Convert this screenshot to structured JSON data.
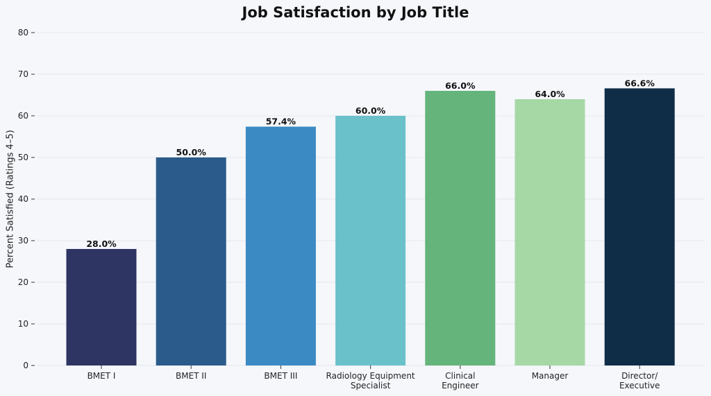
{
  "chart_data": {
    "type": "bar",
    "title": "Job Satisfaction by Job Title",
    "xlabel": "",
    "ylabel": "Percent Satisfied (Ratings 4–5)",
    "ylim": [
      0,
      80
    ],
    "yticks": [
      0,
      10,
      20,
      30,
      40,
      50,
      60,
      70,
      80
    ],
    "grid": true,
    "categories": [
      "BMET I",
      "BMET II",
      "BMET III",
      "Radiology Equipment\nSpecialist",
      "Clinical\nEngineer",
      "Manager",
      "Director/\nExecutive"
    ],
    "values": [
      28.0,
      50.0,
      57.4,
      60.0,
      66.0,
      64.0,
      66.6
    ],
    "data_labels": [
      "28.0%",
      "50.0%",
      "57.4%",
      "60.0%",
      "66.0%",
      "64.0%",
      "66.6%"
    ],
    "colors": [
      "#2e3563",
      "#2a5b8a",
      "#3b8ac4",
      "#6bc1ca",
      "#64b47b",
      "#a6d8a5",
      "#102d47"
    ]
  }
}
